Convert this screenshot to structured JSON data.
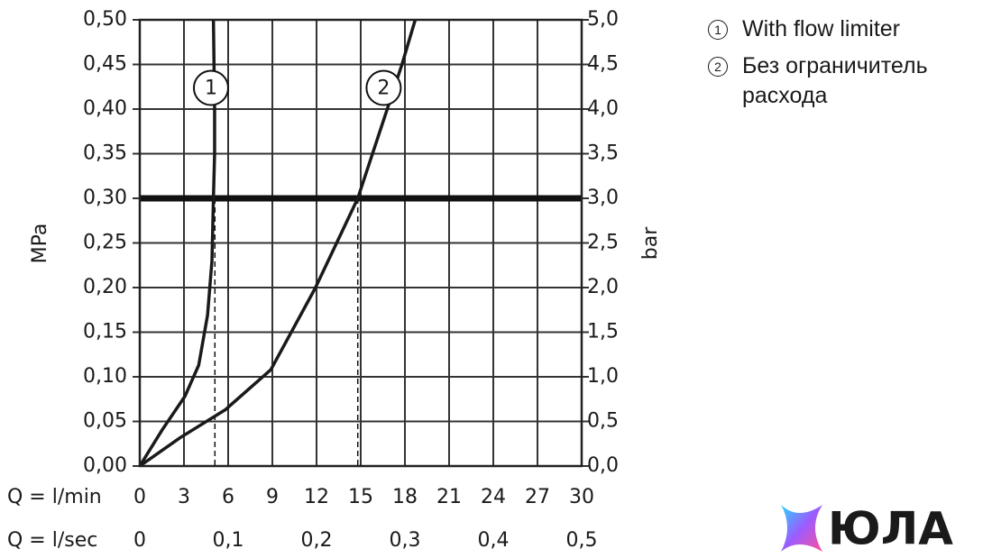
{
  "chart_data": {
    "type": "line",
    "y_label": "MPa",
    "y2_label": "bar",
    "x_label": "Q = l/min",
    "x2_label": "Q = l/sec",
    "xlim": [
      0,
      30
    ],
    "xticks": [
      0,
      3,
      6,
      9,
      12,
      15,
      18,
      21,
      24,
      27,
      30
    ],
    "x2lim": [
      0,
      0.5
    ],
    "x2ticks": [
      0,
      {
        "value": 0.1,
        "label": "0,1"
      },
      {
        "value": 0.2,
        "label": "0,2"
      },
      {
        "value": 0.3,
        "label": "0,3"
      },
      {
        "value": 0.4,
        "label": "0,4"
      },
      {
        "value": 0.5,
        "label": "0,5"
      }
    ],
    "ylim": [
      0,
      0.5
    ],
    "yticks": [
      {
        "value": 0,
        "label": "0,00"
      },
      {
        "value": 0.05,
        "label": "0,05"
      },
      {
        "value": 0.1,
        "label": "0,10"
      },
      {
        "value": 0.15,
        "label": "0,15"
      },
      {
        "value": 0.2,
        "label": "0,20"
      },
      {
        "value": 0.25,
        "label": "0,25"
      },
      {
        "value": 0.3,
        "label": "0,30"
      },
      {
        "value": 0.35,
        "label": "0,35"
      },
      {
        "value": 0.4,
        "label": "0,40"
      },
      {
        "value": 0.45,
        "label": "0,45"
      },
      {
        "value": 0.5,
        "label": "0,50"
      }
    ],
    "y2lim": [
      0,
      5
    ],
    "y2ticks": [
      {
        "value": 0,
        "label": "0,0"
      },
      {
        "value": 0.5,
        "label": "0,5"
      },
      {
        "value": 1,
        "label": "1,0"
      },
      {
        "value": 1.5,
        "label": "1,5"
      },
      {
        "value": 2,
        "label": "2,0"
      },
      {
        "value": 2.5,
        "label": "2,5"
      },
      {
        "value": 3,
        "label": "3,0"
      },
      {
        "value": 3.5,
        "label": "3,5"
      },
      {
        "value": 4,
        "label": "4,0"
      },
      {
        "value": 4.5,
        "label": "4,5"
      },
      {
        "value": 5,
        "label": "5,0"
      }
    ],
    "grid": true,
    "hline": 0.3,
    "vlines": [
      5.1,
      14.8
    ],
    "curve_labels": [
      "1",
      "2"
    ],
    "series": [
      {
        "name": "With flow limiter",
        "color": "#1a1a1a",
        "x": [
          0,
          1.5,
          3.06,
          4.0,
          4.6,
          4.9,
          5.0,
          5.08,
          5.08,
          5.0
        ],
        "values": [
          0,
          0.04,
          0.078,
          0.113,
          0.169,
          0.23,
          0.3,
          0.35,
          0.4,
          0.5
        ]
      },
      {
        "name": "Без ограничитель расхода",
        "color": "#1a1a1a",
        "x": [
          0,
          2.76,
          5.8,
          8.9,
          11.9,
          14.8,
          16.8,
          17.8,
          18.7
        ],
        "values": [
          0,
          0.032,
          0.063,
          0.108,
          0.199,
          0.3,
          0.4,
          0.45,
          0.5
        ]
      }
    ],
    "watermark": "ЮЛА"
  }
}
